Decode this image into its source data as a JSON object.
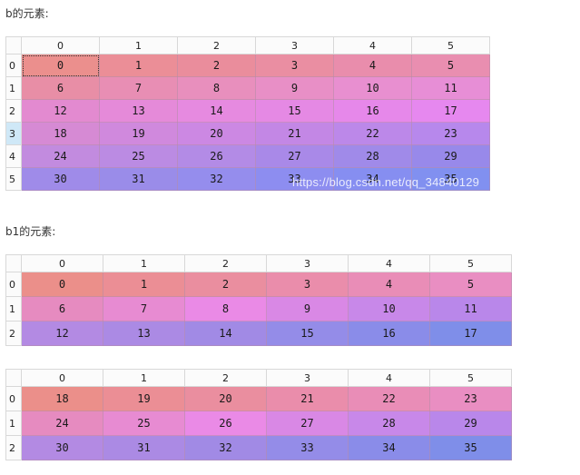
{
  "label_b": "b的元素:",
  "label_b1": "b1的元素:",
  "watermark": "https://blog.csdn.net/qq_34840129",
  "tables": [
    {
      "id": "table-b",
      "columns": [
        "0",
        "1",
        "2",
        "3",
        "4",
        "5"
      ],
      "rows": [
        [
          "0",
          "1",
          "2",
          "3",
          "4",
          "5"
        ],
        [
          "6",
          "7",
          "8",
          "9",
          "10",
          "11"
        ],
        [
          "12",
          "13",
          "14",
          "15",
          "16",
          "17"
        ],
        [
          "18",
          "19",
          "20",
          "21",
          "22",
          "23"
        ],
        [
          "24",
          "25",
          "26",
          "27",
          "28",
          "29"
        ],
        [
          "30",
          "31",
          "32",
          "33",
          "34",
          "35"
        ]
      ],
      "row_labels": [
        "0",
        "1",
        "2",
        "3",
        "4",
        "5"
      ],
      "colors": [
        [
          "#eb8f8d",
          "#eb8e97",
          "#ea8d9c",
          "#ea8ea2",
          "#e98dac",
          "#e98eb0"
        ],
        [
          "#e88ea6",
          "#e88eb4",
          "#e88fbd",
          "#e88fc6",
          "#e88fd0",
          "#e78ed6"
        ],
        [
          "#e38ad0",
          "#e58ad9",
          "#e68ae0",
          "#e589e4",
          "#e688ea",
          "#e688ef"
        ],
        [
          "#d68ad4",
          "#d089dd",
          "#cc88e3",
          "#c387e5",
          "#bc88e9",
          "#b788ec"
        ],
        [
          "#c28bdf",
          "#bb8be3",
          "#b38be6",
          "#a989e8",
          "#a08ae9",
          "#9889ea"
        ],
        [
          "#9f8be9",
          "#9a8ce9",
          "#958ded",
          "#8d8df0",
          "#868ef1",
          "#8190f0"
        ]
      ],
      "selected_cell": [
        0,
        0
      ],
      "active_row": 3
    },
    {
      "id": "table-b1",
      "columns": [
        "0",
        "1",
        "2",
        "3",
        "4",
        "5"
      ],
      "rows": [
        [
          "0",
          "1",
          "2",
          "3",
          "4",
          "5"
        ],
        [
          "6",
          "7",
          "8",
          "9",
          "10",
          "11"
        ],
        [
          "12",
          "13",
          "14",
          "15",
          "16",
          "17"
        ]
      ],
      "row_labels": [
        "0",
        "1",
        "2"
      ],
      "colors": [
        [
          "#eb8f8a",
          "#eb8e95",
          "#ea8e9f",
          "#ea8dab",
          "#e98db7",
          "#e98ec2"
        ],
        [
          "#e68bc0",
          "#e78bd2",
          "#ea8ae6",
          "#d988e5",
          "#c888e9",
          "#b987ea"
        ],
        [
          "#b38ae3",
          "#ab8ae4",
          "#a18ae5",
          "#948ce8",
          "#8a8ce9",
          "#7f8ee9"
        ]
      ]
    },
    {
      "id": "table-b2",
      "columns": [
        "0",
        "1",
        "2",
        "3",
        "4",
        "5"
      ],
      "rows": [
        [
          "18",
          "19",
          "20",
          "21",
          "22",
          "23"
        ],
        [
          "24",
          "25",
          "26",
          "27",
          "28",
          "29"
        ],
        [
          "30",
          "31",
          "32",
          "33",
          "34",
          "35"
        ]
      ],
      "row_labels": [
        "0",
        "1",
        "2"
      ],
      "colors": [
        [
          "#eb8f8a",
          "#eb8e95",
          "#ea8e9f",
          "#ea8dab",
          "#e98db7",
          "#e98ec2"
        ],
        [
          "#e68bc0",
          "#e78bd2",
          "#ea8ae6",
          "#d988e5",
          "#c888e9",
          "#b987ea"
        ],
        [
          "#b38ae3",
          "#ab8ae4",
          "#a18ae5",
          "#948ce8",
          "#8a8ce9",
          "#7f8ee9"
        ]
      ]
    }
  ]
}
